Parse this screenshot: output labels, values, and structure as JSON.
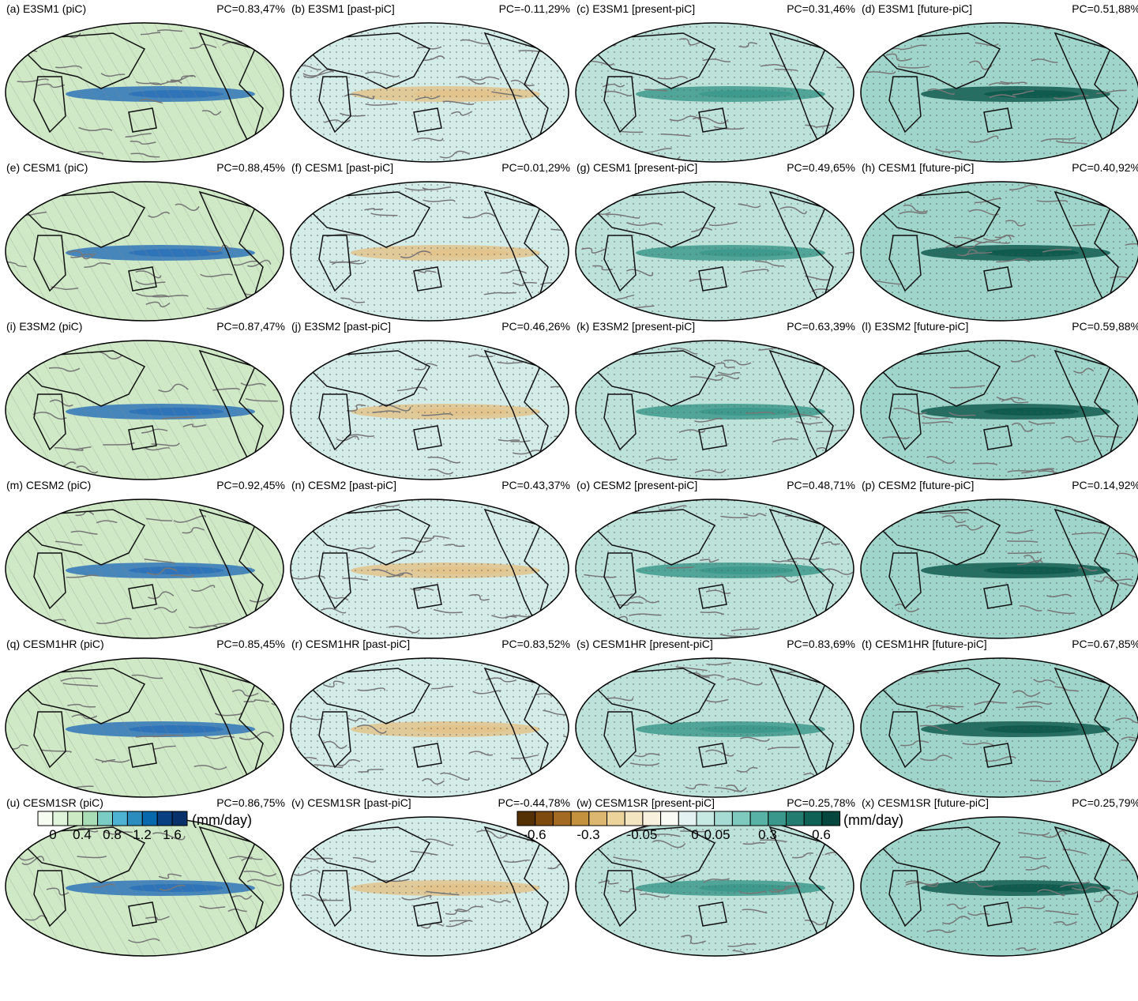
{
  "panels": [
    {
      "label": "(a) E3SM1 (piC)",
      "pc": "PC=0.83,47%"
    },
    {
      "label": "(b) E3SM1 [past-piC]",
      "pc": "PC=-0.11,29%"
    },
    {
      "label": "(c) E3SM1 [present-piC]",
      "pc": "PC=0.31,46%"
    },
    {
      "label": "(d) E3SM1 [future-piC]",
      "pc": "PC=0.51,88%"
    },
    {
      "label": "(e) CESM1 (piC)",
      "pc": "PC=0.88,45%"
    },
    {
      "label": "(f) CESM1 [past-piC]",
      "pc": "PC=0.01,29%"
    },
    {
      "label": "(g) CESM1 [present-piC]",
      "pc": "PC=0.49,65%"
    },
    {
      "label": "(h) CESM1 [future-piC]",
      "pc": "PC=0.40,92%"
    },
    {
      "label": "(i) E3SM2 (piC)",
      "pc": "PC=0.87,47%"
    },
    {
      "label": "(j) E3SM2 [past-piC]",
      "pc": "PC=0.46,26%"
    },
    {
      "label": "(k) E3SM2 [present-piC]",
      "pc": "PC=0.63,39%"
    },
    {
      "label": "(l) E3SM2 [future-piC]",
      "pc": "PC=0.59,88%"
    },
    {
      "label": "(m) CESM2 (piC)",
      "pc": "PC=0.92,45%"
    },
    {
      "label": "(n) CESM2 [past-piC]",
      "pc": "PC=0.43,37%"
    },
    {
      "label": "(o) CESM2 [present-piC]",
      "pc": "PC=0.48,71%"
    },
    {
      "label": "(p) CESM2 [future-piC]",
      "pc": "PC=0.14,92%"
    },
    {
      "label": "(q) CESM1HR (piC)",
      "pc": "PC=0.85,45%"
    },
    {
      "label": "(r) CESM1HR [past-piC]",
      "pc": "PC=0.83,52%"
    },
    {
      "label": "(s) CESM1HR [present-piC]",
      "pc": "PC=0.83,69%"
    },
    {
      "label": "(t) CESM1HR [future-piC]",
      "pc": "PC=0.67,85%"
    },
    {
      "label": "(u) CESM1SR (piC)",
      "pc": "PC=0.86,75%"
    },
    {
      "label": "(v) CESM1SR [past-piC]",
      "pc": "PC=-0.44,78%"
    },
    {
      "label": "(w) CESM1SR [present-piC]",
      "pc": "PC=0.25,78%"
    },
    {
      "label": "(x) CESM1SR [future-piC]",
      "pc": "PC=0.25,79%"
    }
  ],
  "colorbar_left": {
    "colors": [
      "#f7fcf0",
      "#e0f3db",
      "#ccebc5",
      "#a8ddb5",
      "#7bccc4",
      "#4eb3d3",
      "#2b8cbe",
      "#0868ac",
      "#084081",
      "#08306b"
    ],
    "ticks": [
      "0",
      "0.4",
      "0.8",
      "1.2",
      "1.6"
    ],
    "unit": "(mm/day)"
  },
  "colorbar_right": {
    "colors": [
      "#543005",
      "#7f4a0e",
      "#a36a24",
      "#c4913f",
      "#dbb770",
      "#ebd39b",
      "#f3e5c0",
      "#f8f1de",
      "#fbfbf5",
      "#e4f3f1",
      "#c7e9e4",
      "#a5dbd3",
      "#7fcabf",
      "#58b3a6",
      "#3a978b",
      "#237c70",
      "#0f6156",
      "#05473e"
    ],
    "ticks": [
      "-0.6",
      "-0.3",
      "-0.05",
      "0",
      "0.05",
      "0.3",
      "0.6"
    ],
    "unit": "(mm/day)"
  }
}
